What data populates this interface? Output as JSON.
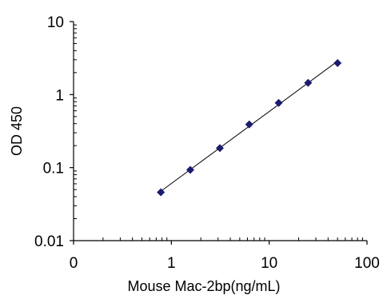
{
  "chart_data": {
    "type": "scatter",
    "title": "",
    "xlabel": "Mouse Mac-2bp(ng/mL)",
    "ylabel": "OD 450",
    "x_scale": "log",
    "y_scale": "log",
    "xlim": [
      0.1,
      100
    ],
    "ylim": [
      0.01,
      10
    ],
    "x_tick_labels": [
      {
        "value": 0.1,
        "label": "0"
      },
      {
        "value": 1,
        "label": "1"
      },
      {
        "value": 10,
        "label": "10"
      },
      {
        "value": 100,
        "label": "100"
      }
    ],
    "y_tick_labels": [
      {
        "value": 0.01,
        "label": "0.01"
      },
      {
        "value": 0.1,
        "label": "0.1"
      },
      {
        "value": 1,
        "label": "1"
      },
      {
        "value": 10,
        "label": "10"
      }
    ],
    "grid": false,
    "legend": "none",
    "marker": "diamond",
    "marker_color": "#1a1a6e",
    "trendline": true,
    "series": [
      {
        "x": [
          0.78,
          1.56,
          3.13,
          6.25,
          12.5,
          25,
          50
        ],
        "y": [
          0.046,
          0.093,
          0.185,
          0.39,
          0.77,
          1.45,
          2.7
        ]
      }
    ]
  }
}
